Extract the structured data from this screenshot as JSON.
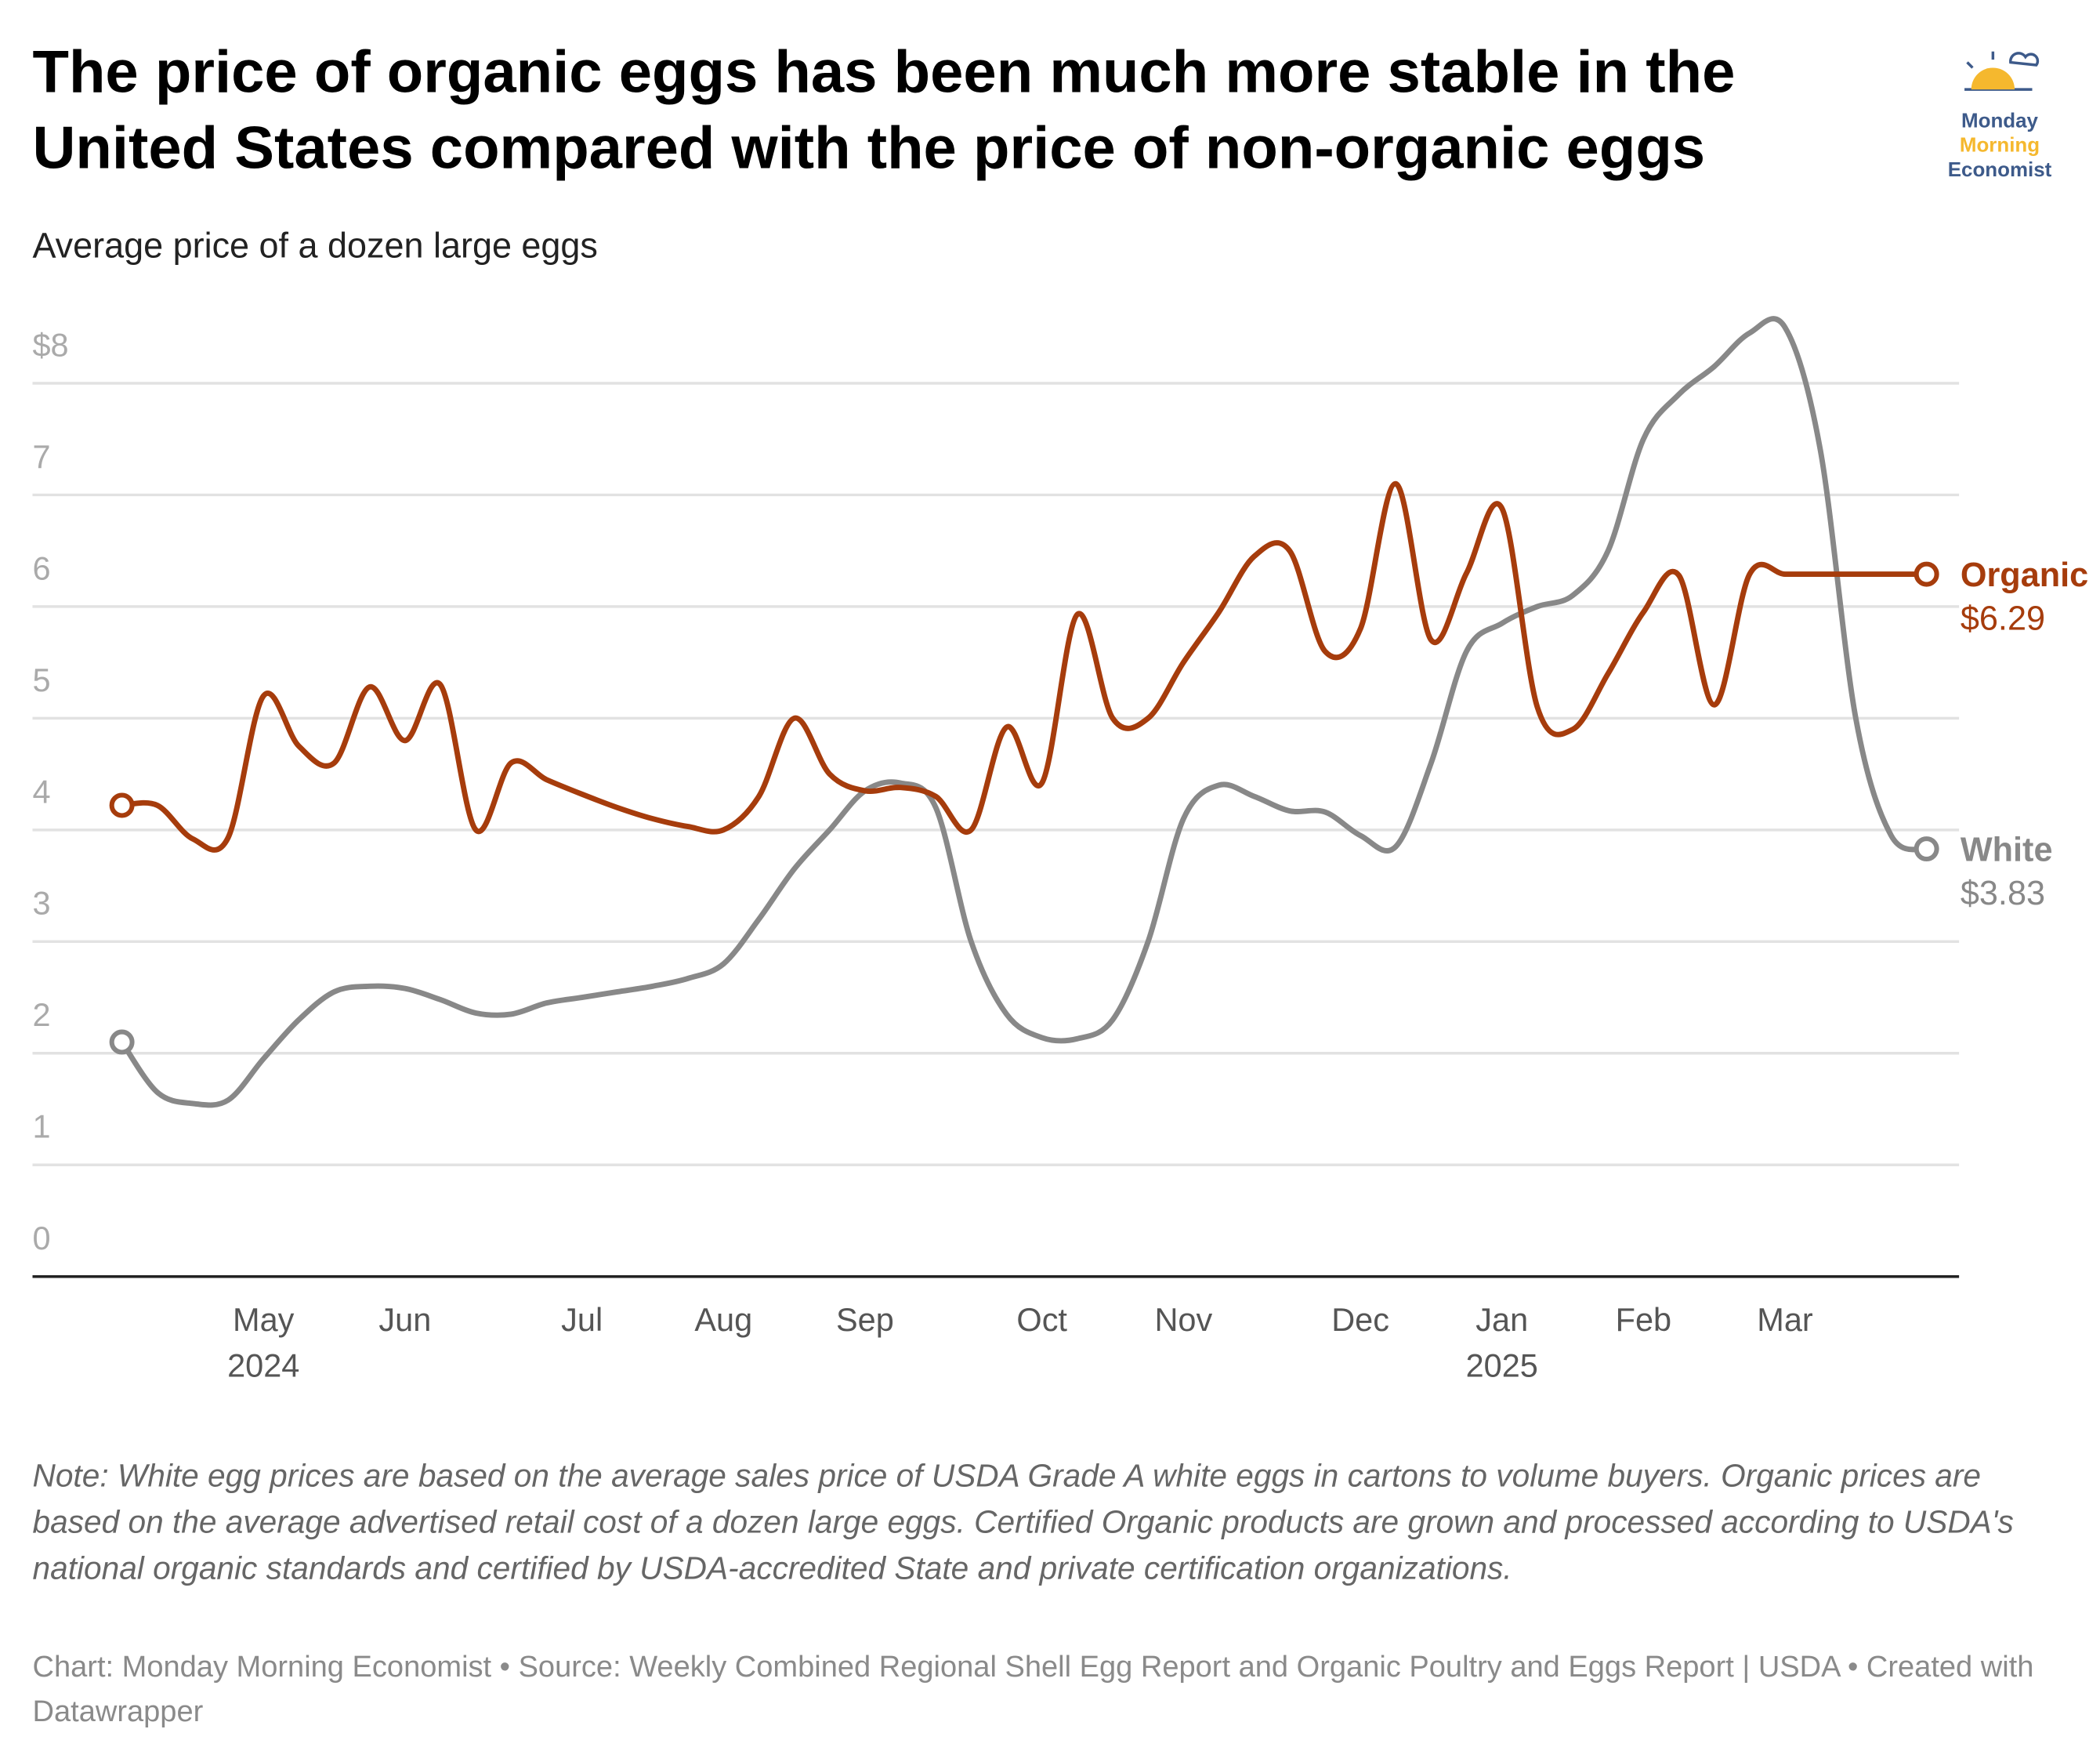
{
  "chart_data": {
    "type": "line",
    "title": "The price of organic eggs has been much more stable in the United States compared with the price of non-organic eggs",
    "subtitle": "Average price of a dozen large eggs",
    "logo": {
      "line1": "Monday",
      "line2": "Morning",
      "line3": "Economist"
    },
    "note": "Note: White egg prices are based on the average sales price of USDA Grade A white eggs in cartons to volume buyers. Organic prices are based on the average advertised retail cost of a dozen large eggs. Certified Organic products are grown and processed according to USDA's national organic standards and certified by USDA-accredited State and private certification organizations.",
    "source": "Chart: Monday Morning Economist • Source: Weekly Combined Regional Shell Egg Report and Organic Poultry and Eggs Report | USDA • Created with Datawrapper",
    "categories": [
      null,
      null,
      null,
      null,
      "May\n2024",
      null,
      null,
      null,
      "Jun",
      null,
      null,
      null,
      null,
      "Jul",
      null,
      null,
      null,
      "Aug",
      null,
      null,
      null,
      "Sep",
      null,
      null,
      null,
      null,
      "Oct",
      null,
      null,
      null,
      "Nov",
      null,
      null,
      null,
      null,
      "Dec",
      null,
      null,
      null,
      "Jan\n2025",
      null,
      null,
      null,
      "Feb",
      null,
      null,
      null,
      "Mar",
      null,
      null,
      null,
      null
    ],
    "series": [
      {
        "name": "Organic",
        "color": "#a63c0c",
        "values": [
          4.22,
          4.22,
          3.92,
          3.93,
          5.2,
          4.75,
          4.6,
          5.28,
          4.8,
          5.3,
          4.0,
          4.6,
          4.45,
          4.32,
          4.2,
          4.1,
          4.03,
          4.0,
          4.3,
          5.0,
          4.5,
          4.35,
          4.38,
          4.3,
          4.0,
          4.92,
          4.42,
          5.93,
          5.0,
          5.0,
          5.5,
          5.95,
          6.45,
          6.5,
          5.6,
          5.8,
          7.1,
          5.7,
          6.3,
          6.88,
          5.1,
          4.9,
          5.4,
          5.95,
          6.28,
          5.12,
          6.29,
          6.29,
          6.29,
          6.29,
          6.29,
          6.29
        ],
        "value_labels": [
          null,
          null,
          null,
          null,
          null,
          null,
          null,
          null,
          null,
          null,
          null,
          null,
          null,
          null,
          null,
          null,
          null,
          null,
          null,
          null,
          null,
          null,
          null,
          null,
          null,
          null,
          null,
          null,
          null,
          null,
          null,
          null,
          null,
          null,
          null,
          null,
          null,
          null,
          null,
          null,
          null,
          null,
          null,
          null,
          null,
          null,
          null,
          null,
          null,
          null,
          null,
          "$6.29"
        ]
      },
      {
        "name": "White",
        "color": "#888888",
        "values": [
          2.1,
          1.65,
          1.55,
          1.58,
          1.95,
          2.3,
          2.55,
          2.6,
          2.58,
          2.48,
          2.36,
          2.35,
          2.45,
          2.5,
          2.55,
          2.6,
          2.67,
          2.8,
          3.2,
          3.65,
          4.0,
          4.35,
          4.42,
          4.2,
          3.0,
          2.35,
          2.14,
          2.13,
          2.3,
          3.0,
          4.1,
          4.4,
          4.3,
          4.17,
          4.16,
          3.95,
          3.85,
          4.6,
          5.6,
          5.85,
          6.0,
          6.1,
          6.5,
          7.5,
          7.9,
          8.15,
          8.45,
          8.5,
          7.4,
          5.0,
          3.95,
          3.83
        ],
        "value_labels": [
          null,
          null,
          null,
          null,
          null,
          null,
          null,
          null,
          null,
          null,
          null,
          null,
          null,
          null,
          null,
          null,
          null,
          null,
          null,
          null,
          null,
          null,
          null,
          null,
          null,
          null,
          null,
          null,
          null,
          null,
          null,
          null,
          null,
          null,
          null,
          null,
          null,
          null,
          null,
          null,
          null,
          null,
          null,
          null,
          null,
          null,
          null,
          null,
          null,
          null,
          null,
          "$3.83"
        ]
      }
    ],
    "ylim": [
      0,
      8.5
    ],
    "yticks": [
      0,
      1,
      2,
      3,
      4,
      5,
      6,
      7,
      {
        "value": 8,
        "label": "$8"
      }
    ],
    "grid": true
  }
}
